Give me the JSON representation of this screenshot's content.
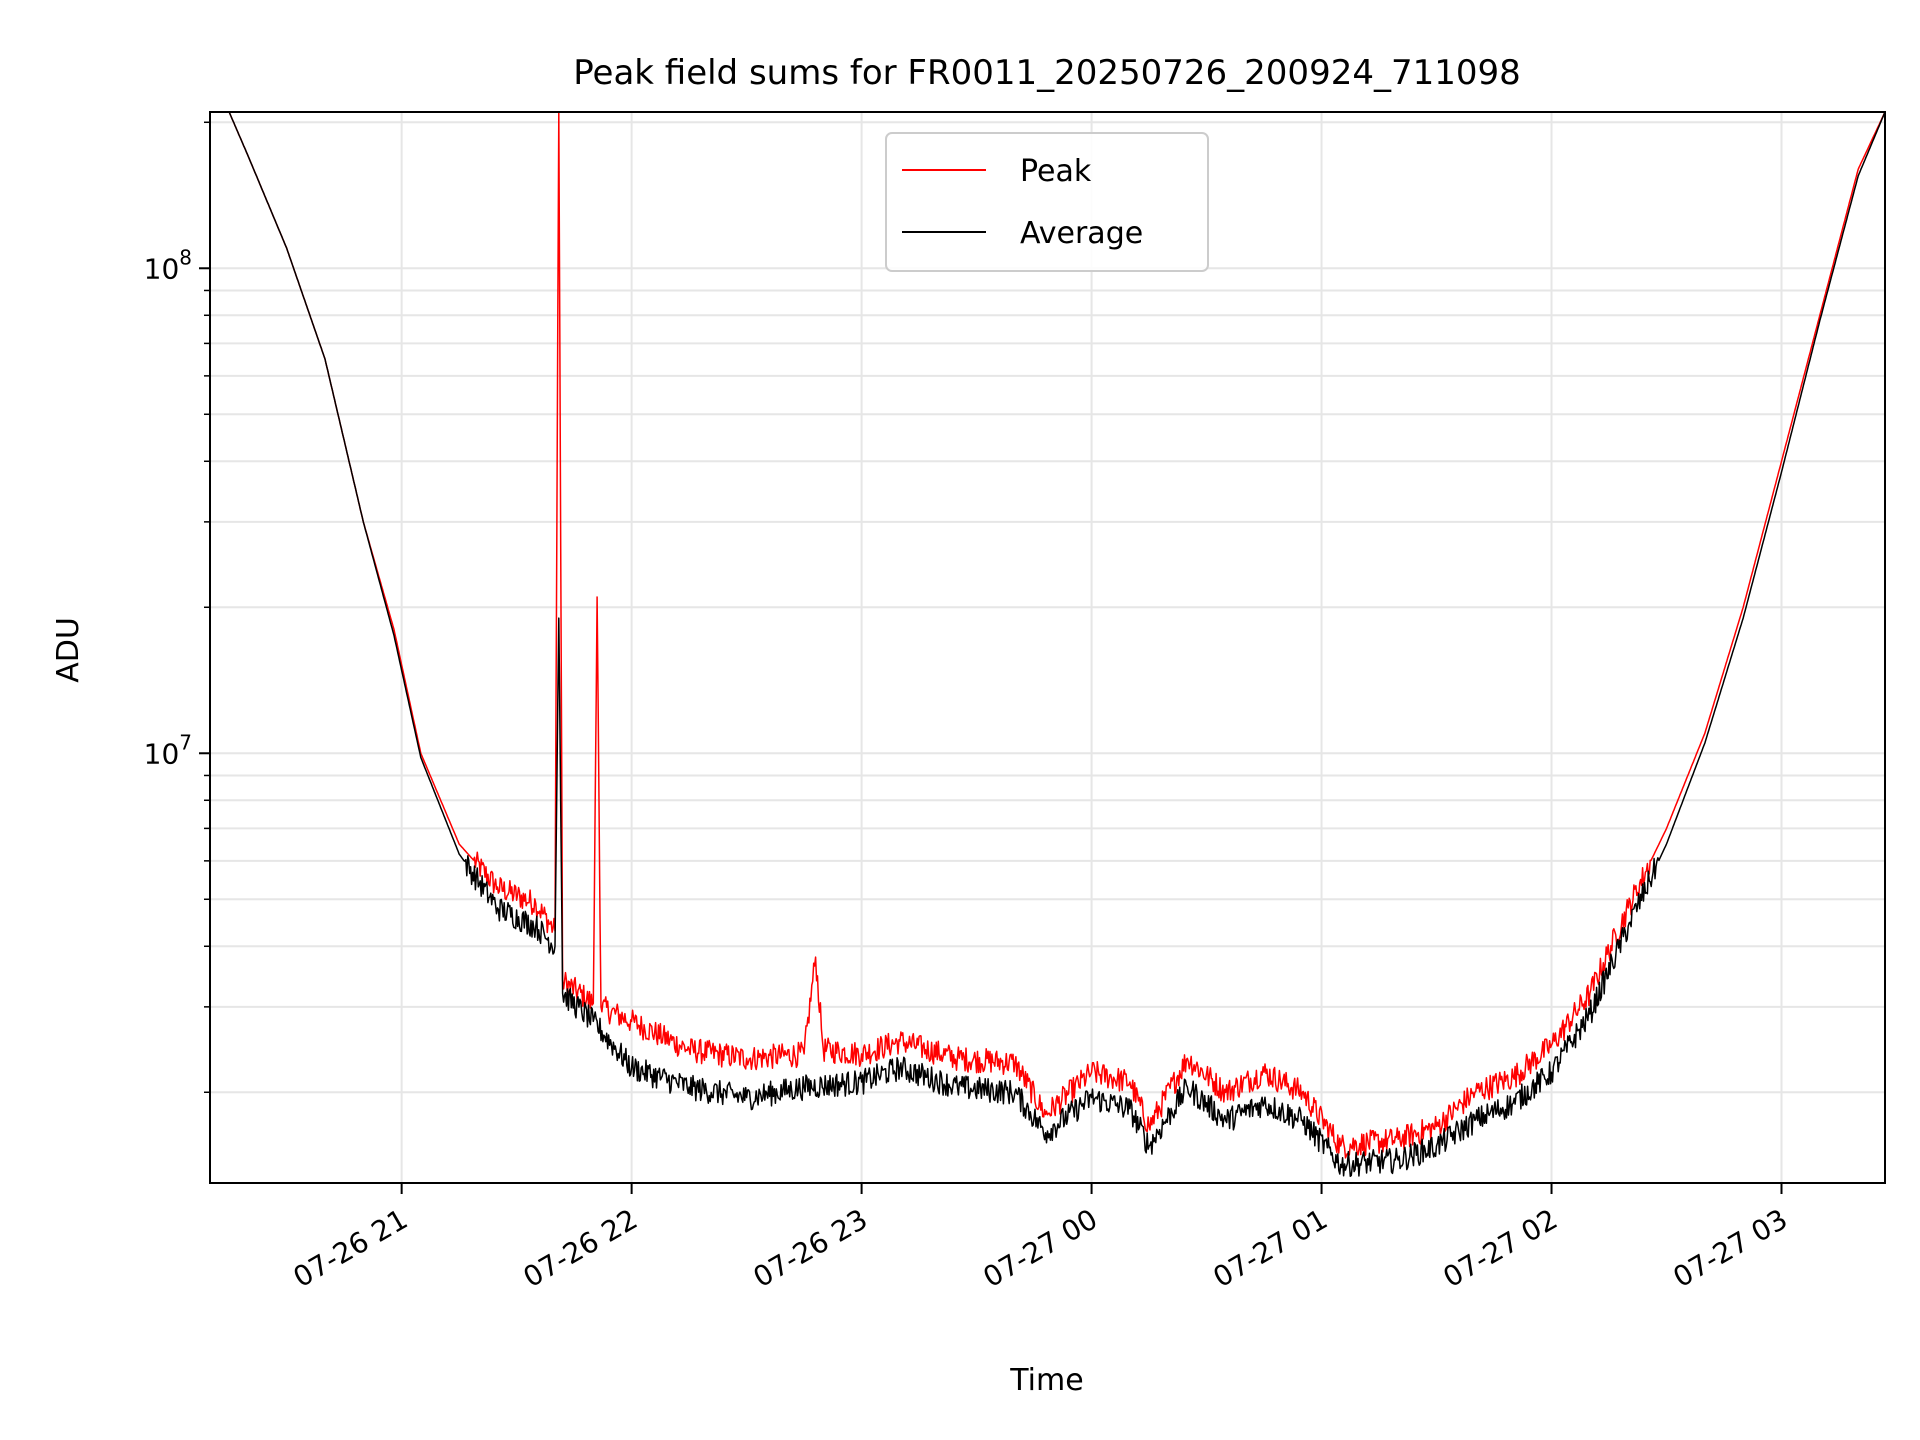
{
  "chart_data": {
    "type": "line",
    "title": "Peak field sums for FR0011_20250726_200924_711098",
    "xlabel": "Time",
    "ylabel": "ADU",
    "yscale": "log",
    "xlim": [
      "2025-07-26 20:10",
      "2025-07-27 03:27"
    ],
    "ylim": [
      1300000,
      210000000
    ],
    "grid": true,
    "legend_position": "upper center",
    "x_ticks": [
      "07-26 21",
      "07-26 22",
      "07-26 23",
      "07-27 00",
      "07-27 01",
      "07-27 02",
      "07-27 03"
    ],
    "y_ticks": [
      {
        "base": "10",
        "exp": "7",
        "value": 10000000
      },
      {
        "base": "10",
        "exp": "8",
        "value": 100000000
      }
    ],
    "series": [
      {
        "name": "Peak",
        "color": "#ff0000",
        "points": [
          [
            "2025-07-26 20:10",
            210000000
          ],
          [
            "2025-07-26 20:15",
            210000000
          ],
          [
            "2025-07-26 20:20",
            170000000
          ],
          [
            "2025-07-26 20:30",
            110000000
          ],
          [
            "2025-07-26 20:40",
            65000000
          ],
          [
            "2025-07-26 20:50",
            30000000
          ],
          [
            "2025-07-26 20:58",
            18000000
          ],
          [
            "2025-07-26 21:05",
            10000000
          ],
          [
            "2025-07-26 21:15",
            6500000
          ],
          [
            "2025-07-26 21:25",
            5300000
          ],
          [
            "2025-07-26 21:35",
            4900000
          ],
          [
            "2025-07-26 21:40",
            4300000
          ],
          [
            "2025-07-26 21:41",
            210000000
          ],
          [
            "2025-07-26 21:42",
            3400000
          ],
          [
            "2025-07-26 21:50",
            3050000
          ],
          [
            "2025-07-26 21:51",
            21000000
          ],
          [
            "2025-07-26 21:52",
            3000000
          ],
          [
            "2025-07-26 22:00",
            2800000
          ],
          [
            "2025-07-26 22:15",
            2450000
          ],
          [
            "2025-07-26 22:30",
            2350000
          ],
          [
            "2025-07-26 22:45",
            2400000
          ],
          [
            "2025-07-26 22:48",
            3800000
          ],
          [
            "2025-07-26 22:50",
            2450000
          ],
          [
            "2025-07-26 23:00",
            2400000
          ],
          [
            "2025-07-26 23:10",
            2550000
          ],
          [
            "2025-07-26 23:25",
            2350000
          ],
          [
            "2025-07-26 23:40",
            2300000
          ],
          [
            "2025-07-26 23:48",
            1800000
          ],
          [
            "2025-07-27 00:00",
            2200000
          ],
          [
            "2025-07-27 00:10",
            2100000
          ],
          [
            "2025-07-27 00:15",
            1700000
          ],
          [
            "2025-07-27 00:25",
            2350000
          ],
          [
            "2025-07-27 00:35",
            2000000
          ],
          [
            "2025-07-27 00:45",
            2200000
          ],
          [
            "2025-07-27 00:55",
            2000000
          ],
          [
            "2025-07-27 01:05",
            1550000
          ],
          [
            "2025-07-27 01:20",
            1600000
          ],
          [
            "2025-07-27 01:30",
            1700000
          ],
          [
            "2025-07-27 01:40",
            2000000
          ],
          [
            "2025-07-27 01:50",
            2150000
          ],
          [
            "2025-07-27 02:00",
            2500000
          ],
          [
            "2025-07-27 02:10",
            3200000
          ],
          [
            "2025-07-27 02:20",
            4800000
          ],
          [
            "2025-07-27 02:30",
            7000000
          ],
          [
            "2025-07-27 02:40",
            11000000
          ],
          [
            "2025-07-27 02:50",
            20000000
          ],
          [
            "2025-07-27 03:00",
            40000000
          ],
          [
            "2025-07-27 03:10",
            80000000
          ],
          [
            "2025-07-27 03:20",
            160000000
          ],
          [
            "2025-07-27 03:27",
            210000000
          ]
        ]
      },
      {
        "name": "Average",
        "color": "#000000",
        "points": [
          [
            "2025-07-26 20:10",
            210000000
          ],
          [
            "2025-07-26 20:15",
            210000000
          ],
          [
            "2025-07-26 20:20",
            170000000
          ],
          [
            "2025-07-26 20:30",
            110000000
          ],
          [
            "2025-07-26 20:40",
            65000000
          ],
          [
            "2025-07-26 20:50",
            30000000
          ],
          [
            "2025-07-26 20:58",
            17500000
          ],
          [
            "2025-07-26 21:05",
            9800000
          ],
          [
            "2025-07-26 21:15",
            6200000
          ],
          [
            "2025-07-26 21:25",
            4800000
          ],
          [
            "2025-07-26 21:35",
            4400000
          ],
          [
            "2025-07-26 21:40",
            4000000
          ],
          [
            "2025-07-26 21:41",
            19000000
          ],
          [
            "2025-07-26 21:42",
            3200000
          ],
          [
            "2025-07-26 21:50",
            2800000
          ],
          [
            "2025-07-26 22:00",
            2250000
          ],
          [
            "2025-07-26 22:15",
            2050000
          ],
          [
            "2025-07-26 22:30",
            1950000
          ],
          [
            "2025-07-26 22:45",
            2050000
          ],
          [
            "2025-07-26 23:00",
            2100000
          ],
          [
            "2025-07-26 23:10",
            2250000
          ],
          [
            "2025-07-26 23:25",
            2050000
          ],
          [
            "2025-07-26 23:40",
            2000000
          ],
          [
            "2025-07-26 23:48",
            1650000
          ],
          [
            "2025-07-27 00:00",
            1950000
          ],
          [
            "2025-07-27 00:10",
            1850000
          ],
          [
            "2025-07-27 00:15",
            1550000
          ],
          [
            "2025-07-27 00:25",
            2050000
          ],
          [
            "2025-07-27 00:35",
            1750000
          ],
          [
            "2025-07-27 00:45",
            1900000
          ],
          [
            "2025-07-27 00:55",
            1750000
          ],
          [
            "2025-07-27 01:05",
            1420000
          ],
          [
            "2025-07-27 01:20",
            1450000
          ],
          [
            "2025-07-27 01:30",
            1550000
          ],
          [
            "2025-07-27 01:40",
            1750000
          ],
          [
            "2025-07-27 01:50",
            1900000
          ],
          [
            "2025-07-27 02:00",
            2200000
          ],
          [
            "2025-07-27 02:10",
            2900000
          ],
          [
            "2025-07-27 02:20",
            4400000
          ],
          [
            "2025-07-27 02:30",
            6500000
          ],
          [
            "2025-07-27 02:40",
            10500000
          ],
          [
            "2025-07-27 02:50",
            19000000
          ],
          [
            "2025-07-27 03:00",
            38000000
          ],
          [
            "2025-07-27 03:10",
            78000000
          ],
          [
            "2025-07-27 03:20",
            155000000
          ],
          [
            "2025-07-27 03:27",
            210000000
          ]
        ]
      }
    ]
  }
}
